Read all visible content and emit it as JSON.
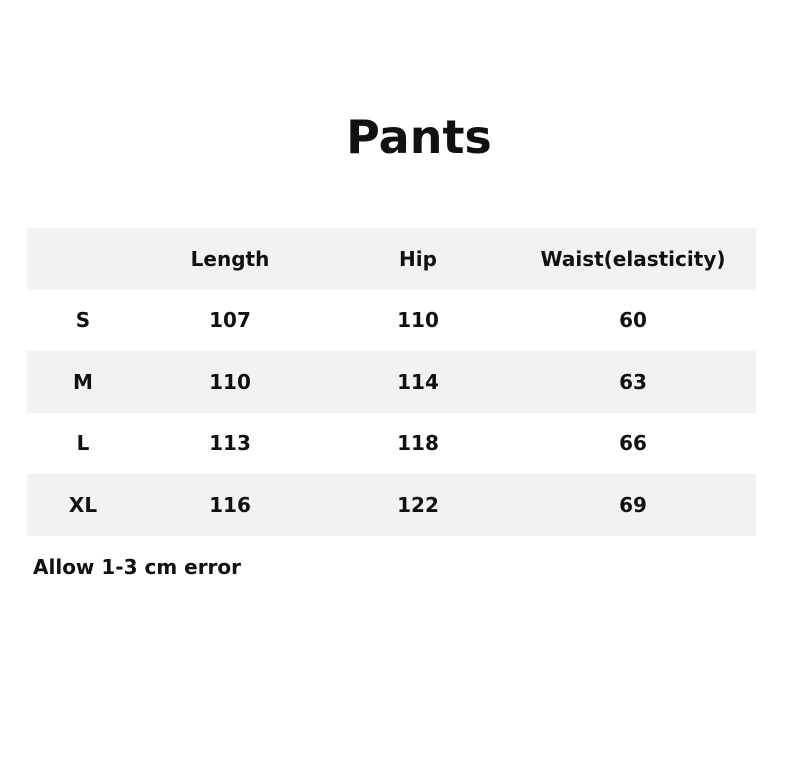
{
  "title": "Pants",
  "headers": [
    "",
    "Length",
    "Hip",
    "Waist(elasticity)"
  ],
  "rows": [
    [
      "S",
      "107",
      "110",
      "60"
    ],
    [
      "M",
      "110",
      "114",
      "63"
    ],
    [
      "L",
      "113",
      "118",
      "66"
    ],
    [
      "XL",
      "116",
      "122",
      "69"
    ]
  ],
  "note": "Allow 1-3 cm error"
}
